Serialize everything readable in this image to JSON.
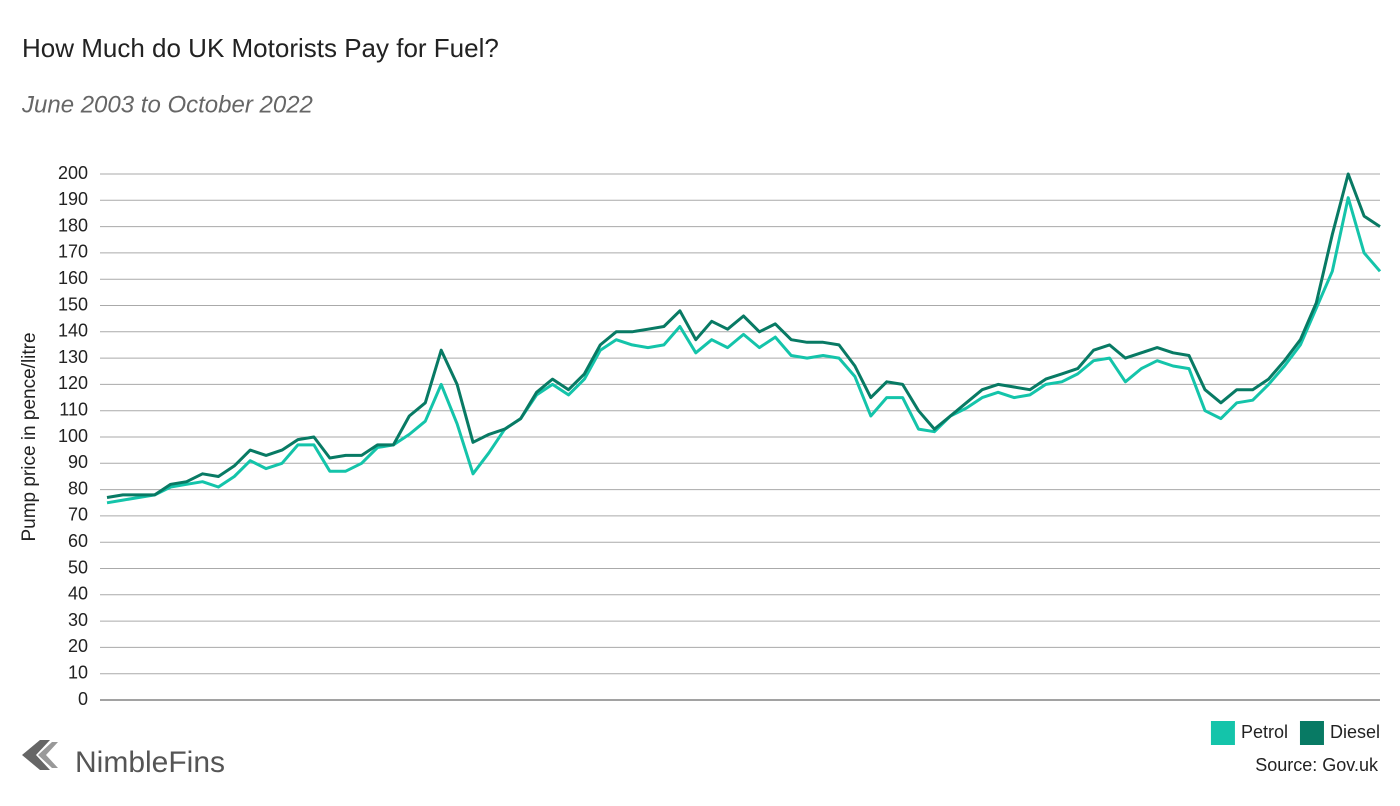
{
  "chart_data": {
    "type": "line",
    "title": "How Much do UK Motorists Pay for Fuel?",
    "subtitle": "June 2003 to October 2022",
    "y_label": "Pump price in pence/litre",
    "source": "Source: Gov.uk",
    "brand": "NimbleFins",
    "ylim": [
      0,
      200
    ],
    "yticks": [
      0,
      10,
      20,
      30,
      40,
      50,
      60,
      70,
      80,
      90,
      100,
      110,
      120,
      130,
      140,
      150,
      160,
      170,
      180,
      190,
      200
    ],
    "grid": true,
    "legend": "bottom-right",
    "series": [
      {
        "name": "Petrol",
        "color": "#14c4aa",
        "values": [
          75,
          76,
          77,
          78,
          81,
          82,
          83,
          81,
          85,
          91,
          88,
          90,
          97,
          97,
          87,
          87,
          90,
          96,
          97,
          101,
          106,
          120,
          105,
          86,
          94,
          103,
          107,
          116,
          120,
          116,
          122,
          133,
          137,
          135,
          134,
          135,
          142,
          132,
          137,
          134,
          139,
          134,
          138,
          131,
          130,
          131,
          130,
          123,
          108,
          115,
          115,
          103,
          102,
          108,
          111,
          115,
          117,
          115,
          116,
          120,
          121,
          124,
          129,
          130,
          121,
          126,
          129,
          127,
          126,
          110,
          107,
          113,
          114,
          120,
          127,
          135,
          149,
          163,
          191,
          170,
          163
        ]
      },
      {
        "name": "Diesel",
        "color": "#087a64",
        "values": [
          77,
          78,
          78,
          78,
          82,
          83,
          86,
          85,
          89,
          95,
          93,
          95,
          99,
          100,
          92,
          93,
          93,
          97,
          97,
          108,
          113,
          133,
          120,
          98,
          101,
          103,
          107,
          117,
          122,
          118,
          124,
          135,
          140,
          140,
          141,
          142,
          148,
          137,
          144,
          141,
          146,
          140,
          143,
          137,
          136,
          136,
          135,
          127,
          115,
          121,
          120,
          110,
          103,
          108,
          113,
          118,
          120,
          119,
          118,
          122,
          124,
          126,
          133,
          135,
          130,
          132,
          134,
          132,
          131,
          118,
          113,
          118,
          118,
          122,
          129,
          137,
          151,
          177,
          200,
          184,
          180
        ]
      }
    ]
  }
}
